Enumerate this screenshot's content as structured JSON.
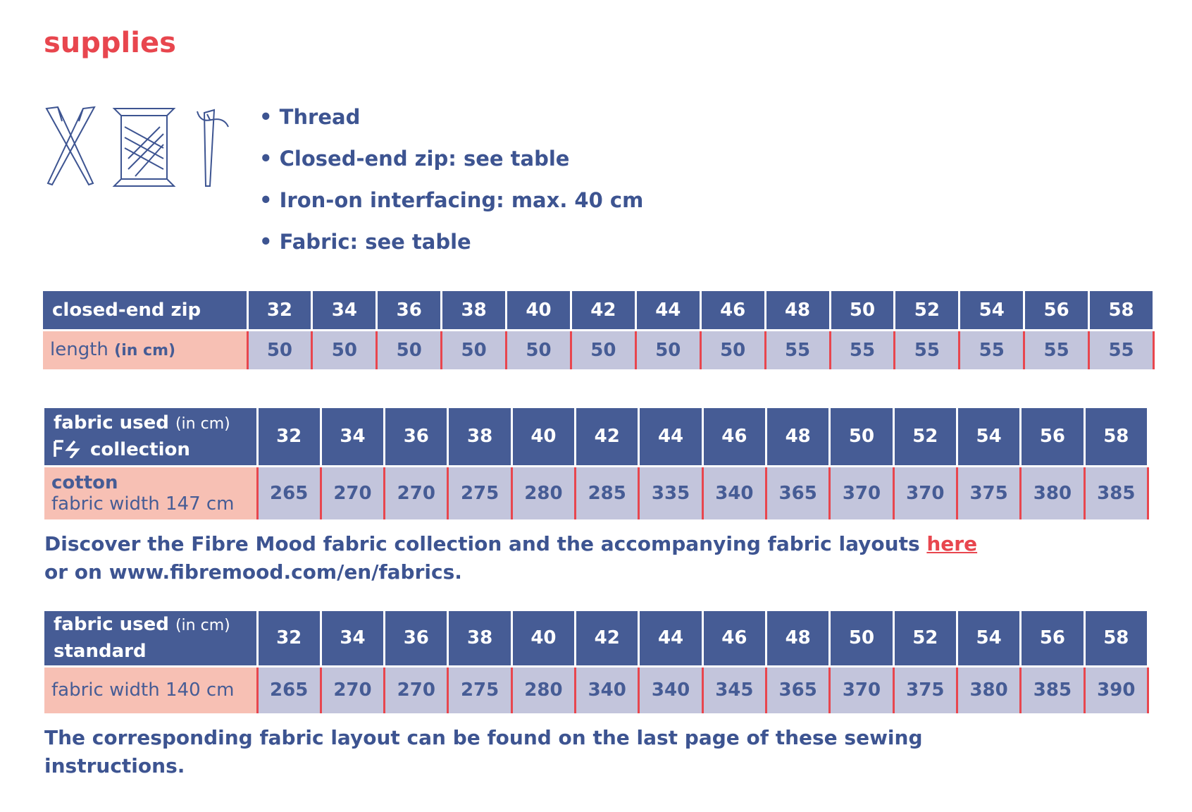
{
  "title": "supplies",
  "supplies": [
    "• Thread",
    "• Closed-end zip: see table",
    "• Iron-on interfacing: max. 40 cm",
    "• Fabric: see table"
  ],
  "tables": [
    {
      "header_label": "closed-end zip",
      "sizes": [
        32,
        34,
        36,
        38,
        40,
        42,
        44,
        46,
        48,
        50,
        52,
        54,
        56,
        58
      ],
      "row_label": "length",
      "row_unit": "(in cm)",
      "values": [
        50,
        50,
        50,
        50,
        50,
        50,
        50,
        50,
        55,
        55,
        55,
        55,
        55,
        55
      ]
    },
    {
      "header_label": "fabric used",
      "header_unit": "(in cm)",
      "header_sub": "collection",
      "sizes": [
        32,
        34,
        36,
        38,
        40,
        42,
        44,
        46,
        48,
        50,
        52,
        54,
        56,
        58
      ],
      "row_label": "cotton",
      "row_sub": "fabric width 147 cm",
      "values": [
        265,
        270,
        270,
        275,
        280,
        285,
        335,
        340,
        365,
        370,
        370,
        375,
        380,
        385
      ]
    },
    {
      "header_label": "fabric used",
      "header_unit": "(in cm)",
      "header_sub": "standard",
      "sizes": [
        32,
        34,
        36,
        38,
        40,
        42,
        44,
        46,
        48,
        50,
        52,
        54,
        56,
        58
      ],
      "row_sub": "fabric width 140 cm",
      "values": [
        265,
        270,
        270,
        275,
        280,
        340,
        340,
        345,
        365,
        370,
        375,
        380,
        385,
        390
      ]
    }
  ],
  "note1": {
    "text": "Discover the Fibre Mood fabric collection and the accompanying fabric layouts ",
    "link": "here",
    "text2": "or on www.fibremood.com/en/fabrics."
  },
  "note2": "The corresponding fabric layout can be found on the last page of these sewing instructions."
}
